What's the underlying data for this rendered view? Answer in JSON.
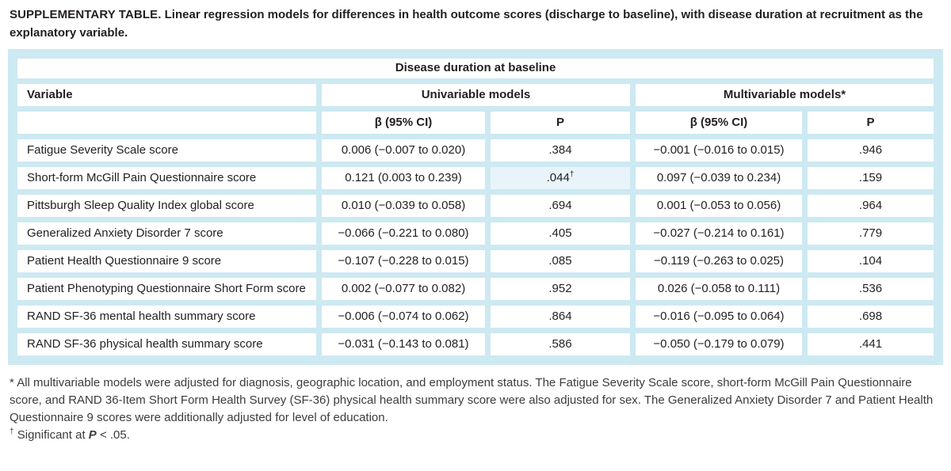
{
  "title": {
    "label": "SUPPLEMENTARY TABLE.",
    "text": " Linear regression models for differences in health outcome scores (discharge to baseline), with disease duration at recruitment as the explanatory variable."
  },
  "table": {
    "span_header": "Disease duration at baseline",
    "variable_header": "Variable",
    "group_headers": [
      "Univariable models",
      "Multivariable models*"
    ],
    "sub_headers": [
      "β (95% CI)",
      "P",
      "β (95% CI)",
      "P"
    ],
    "rows": [
      {
        "variable": "Fatigue Severity Scale score",
        "uni_beta": "0.006 (−0.007 to 0.020)",
        "uni_p": ".384",
        "multi_beta": "−0.001 (−0.016 to 0.015)",
        "multi_p": ".946"
      },
      {
        "variable": "Short-form McGill Pain Questionnaire score",
        "uni_beta": "0.121 (0.003 to 0.239)",
        "uni_p": ".044",
        "uni_p_sup": "†",
        "uni_p_highlight": true,
        "multi_beta": "0.097 (−0.039 to 0.234)",
        "multi_p": ".159"
      },
      {
        "variable": "Pittsburgh Sleep Quality Index global score",
        "uni_beta": "0.010 (−0.039 to 0.058)",
        "uni_p": ".694",
        "multi_beta": "0.001 (−0.053 to 0.056)",
        "multi_p": ".964"
      },
      {
        "variable": "Generalized Anxiety Disorder 7 score",
        "uni_beta": "−0.066 (−0.221 to 0.080)",
        "uni_p": ".405",
        "multi_beta": "−0.027 (−0.214 to 0.161)",
        "multi_p": ".779"
      },
      {
        "variable": "Patient Health Questionnaire 9 score",
        "uni_beta": "−0.107 (−0.228 to 0.015)",
        "uni_p": ".085",
        "multi_beta": "−0.119 (−0.263 to 0.025)",
        "multi_p": ".104"
      },
      {
        "variable": "Patient Phenotyping Questionnaire Short Form score",
        "uni_beta": "0.002 (−0.077 to 0.082)",
        "uni_p": ".952",
        "multi_beta": "0.026 (−0.058 to 0.111)",
        "multi_p": ".536"
      },
      {
        "variable": "RAND SF-36 mental health summary score",
        "uni_beta": "−0.006 (−0.074 to 0.062)",
        "uni_p": ".864",
        "multi_beta": "−0.016 (−0.095 to 0.064)",
        "multi_p": ".698"
      },
      {
        "variable": "RAND SF-36 physical health summary score",
        "uni_beta": "−0.031 (−0.143 to 0.081)",
        "uni_p": ".586",
        "multi_beta": "−0.050 (−0.179 to 0.079)",
        "multi_p": ".441"
      }
    ]
  },
  "footnotes": {
    "adjustment_note": {
      "marker": "* ",
      "text": "All multivariable models were adjusted for diagnosis, geographic location, and employment status. The Fatigue Severity Scale score, short-form McGill Pain Questionnaire score, and RAND 36-Item Short Form Health Survey (SF-36) physical health summary score were also adjusted for sex. The Generalized Anxiety Disorder 7 and Patient Health Questionnaire 9 scores were additionally adjusted for level of education."
    },
    "significance_note": {
      "marker": "†",
      "pre": " Significant at ",
      "symbol": "P",
      "post": " < .05."
    }
  },
  "colors": {
    "table_frame_blue": "#cde9f2",
    "highlight_cell_blue": "#e8f4f9",
    "text_black": "#231f20"
  }
}
